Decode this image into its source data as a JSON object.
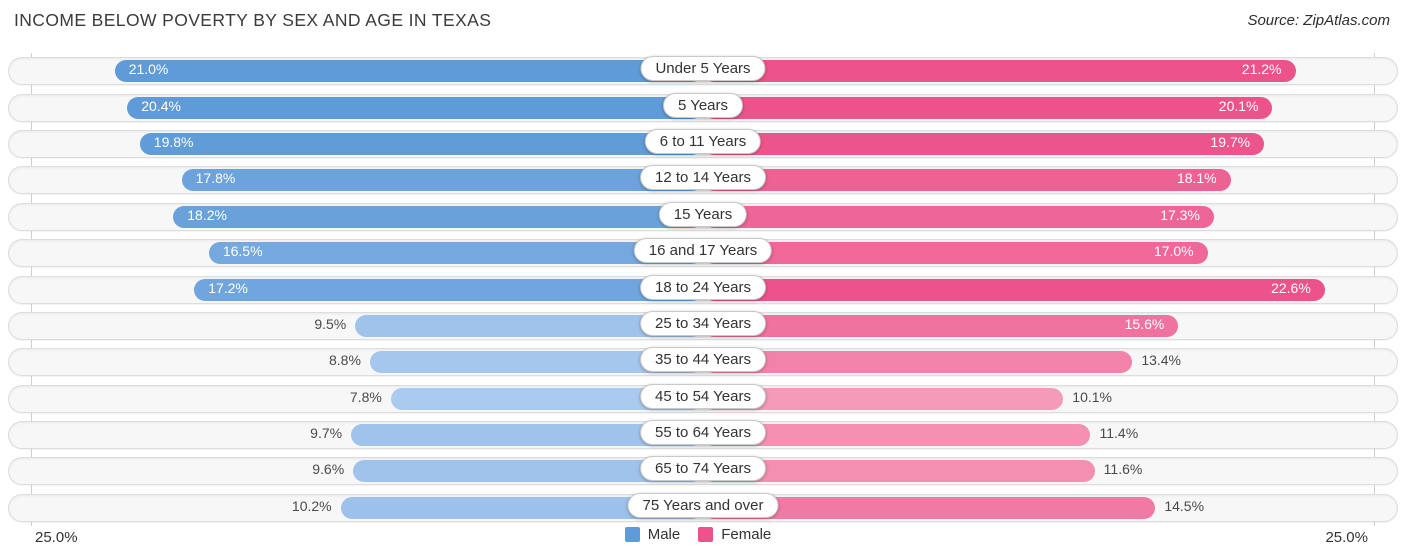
{
  "header": {
    "title": "INCOME BELOW POVERTY BY SEX AND AGE IN TEXAS",
    "source": "Source: ZipAtlas.com"
  },
  "chart_data": {
    "type": "bar",
    "variant": "diverging-horizontal",
    "title": "Income Below Poverty by Sex and Age in Texas",
    "categories": [
      "Under 5 Years",
      "5 Years",
      "6 to 11 Years",
      "12 to 14 Years",
      "15 Years",
      "16 and 17 Years",
      "18 to 24 Years",
      "25 to 34 Years",
      "35 to 44 Years",
      "45 to 54 Years",
      "55 to 64 Years",
      "65 to 74 Years",
      "75 Years and over"
    ],
    "series": [
      {
        "name": "Male",
        "side": "left",
        "color_dark": "#5e9bd8",
        "color_light": "#b0cdf0",
        "values": [
          21.0,
          20.4,
          19.8,
          17.8,
          18.2,
          16.5,
          17.2,
          9.5,
          8.8,
          7.8,
          9.7,
          9.6,
          10.2
        ]
      },
      {
        "name": "Female",
        "side": "right",
        "color_dark": "#ec538a",
        "color_light": "#f8b0c8",
        "values": [
          21.2,
          20.1,
          19.7,
          18.1,
          17.3,
          17.0,
          22.6,
          15.6,
          13.4,
          10.1,
          11.4,
          11.6,
          14.5
        ]
      }
    ],
    "value_suffix": "%",
    "axis": {
      "min": 0,
      "max": 25.0,
      "left_label": "25.0%",
      "right_label": "25.0%"
    },
    "legend": [
      {
        "label": "Male",
        "color": "#5e9bd8"
      },
      {
        "label": "Female",
        "color": "#ec538a"
      }
    ],
    "grid": "edge-limit-lines-only",
    "legend_position": "bottom-center"
  }
}
